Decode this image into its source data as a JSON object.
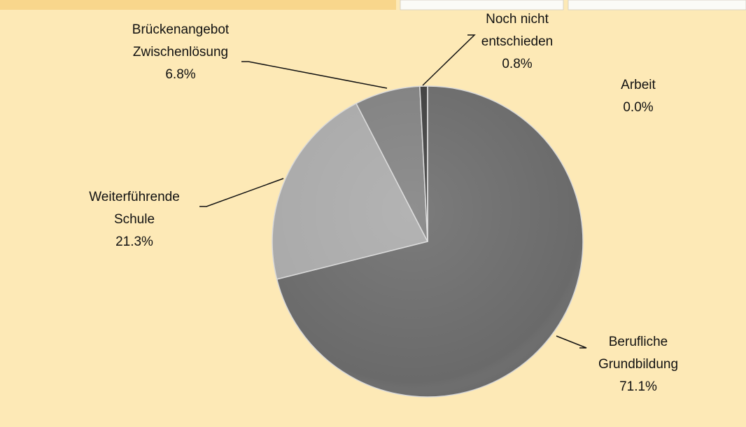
{
  "chart_data": {
    "type": "pie",
    "categories": [
      "Berufliche\nGrundbildung",
      "Weiterführende\nSchule",
      "Brückenangebot\nZwischenlösung",
      "Noch nicht\nentschieden",
      "Arbeit"
    ],
    "values": [
      71.1,
      21.3,
      6.8,
      0.8,
      0.0
    ],
    "value_labels": [
      "71.1%",
      "21.3%",
      "6.8%",
      "0.8%",
      "0.0%"
    ],
    "colors": [
      "#6a6a6a",
      "#a9a9a9",
      "#808080",
      "#3e3e3e",
      "#555555"
    ]
  }
}
